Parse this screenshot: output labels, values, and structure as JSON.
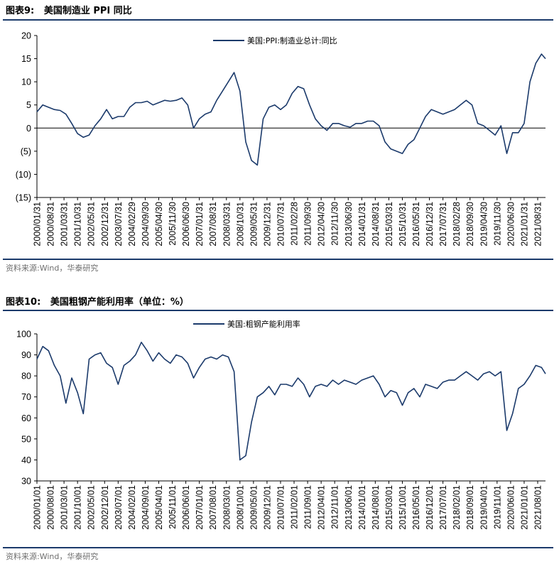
{
  "fig1": {
    "title": "图表9:   美国制造业 PPI 同比",
    "source": "资料来源:Wind，华泰研究"
  },
  "fig2": {
    "title": "图表10:   美国粗钢产能利用率（单位：%）",
    "source": "资料来源:Wind，华泰研究"
  },
  "colors": {
    "line": "#1b3a6b",
    "rule": "#1b3a6b"
  },
  "chart_data": [
    {
      "type": "line",
      "legend": "美国:PPI:制造业总计:同比",
      "legend_position": "top-center",
      "ylim": [
        -15,
        20
      ],
      "yticks": [
        20,
        15,
        10,
        5,
        0,
        -5,
        -10,
        -15
      ],
      "ytick_labels": [
        "20",
        "15",
        "10",
        "5",
        "0",
        "(5)",
        "(10)",
        "(15)"
      ],
      "xlim": [
        2000.0,
        2021.92
      ],
      "xtick_labels": [
        "2000/01/31",
        "2000/08/31",
        "2001/03/31",
        "2001/10/31",
        "2002/05/31",
        "2002/12/31",
        "2003/07/31",
        "2004/02/29",
        "2004/09/30",
        "2005/04/30",
        "2005/11/30",
        "2006/06/30",
        "2007/01/31",
        "2007/08/31",
        "2008/03/31",
        "2008/10/31",
        "2009/05/31",
        "2009/12/31",
        "2010/07/31",
        "2011/02/28",
        "2011/09/30",
        "2012/04/30",
        "2012/11/30",
        "2013/06/30",
        "2014/01/31",
        "2014/08/31",
        "2015/03/31",
        "2015/10/31",
        "2016/05/31",
        "2016/12/31",
        "2017/07/31",
        "2018/02/28",
        "2018/09/30",
        "2019/04/30",
        "2019/11/30",
        "2020/06/30",
        "2021/01/31",
        "2021/08/31"
      ],
      "xtick_values": [
        2000.0,
        2000.583,
        2001.167,
        2001.75,
        2002.333,
        2002.917,
        2003.5,
        2004.083,
        2004.667,
        2005.25,
        2005.833,
        2006.417,
        2007.0,
        2007.583,
        2008.167,
        2008.75,
        2009.333,
        2009.917,
        2010.5,
        2011.083,
        2011.667,
        2012.25,
        2012.833,
        2013.417,
        2014.0,
        2014.583,
        2015.167,
        2015.75,
        2016.333,
        2016.917,
        2017.5,
        2018.083,
        2018.667,
        2019.25,
        2019.833,
        2020.417,
        2021.0,
        2021.583
      ],
      "x": [
        2000.0,
        2000.25,
        2000.5,
        2000.75,
        2001.0,
        2001.25,
        2001.5,
        2001.75,
        2002.0,
        2002.25,
        2002.5,
        2002.75,
        2003.0,
        2003.25,
        2003.5,
        2003.75,
        2004.0,
        2004.25,
        2004.5,
        2004.75,
        2005.0,
        2005.25,
        2005.5,
        2005.75,
        2006.0,
        2006.25,
        2006.5,
        2006.75,
        2007.0,
        2007.25,
        2007.5,
        2007.75,
        2008.0,
        2008.25,
        2008.5,
        2008.75,
        2009.0,
        2009.25,
        2009.5,
        2009.75,
        2010.0,
        2010.25,
        2010.5,
        2010.75,
        2011.0,
        2011.25,
        2011.5,
        2011.75,
        2012.0,
        2012.25,
        2012.5,
        2012.75,
        2013.0,
        2013.25,
        2013.5,
        2013.75,
        2014.0,
        2014.25,
        2014.5,
        2014.75,
        2015.0,
        2015.25,
        2015.5,
        2015.75,
        2016.0,
        2016.25,
        2016.5,
        2016.75,
        2017.0,
        2017.25,
        2017.5,
        2017.75,
        2018.0,
        2018.25,
        2018.5,
        2018.75,
        2019.0,
        2019.25,
        2019.5,
        2019.75,
        2020.0,
        2020.25,
        2020.5,
        2020.75,
        2021.0,
        2021.25,
        2021.5,
        2021.75,
        2021.92
      ],
      "y": [
        3.5,
        5.0,
        4.5,
        4.0,
        3.8,
        3.0,
        1.0,
        -1.2,
        -2.0,
        -1.5,
        0.5,
        2.0,
        4.0,
        2.0,
        2.5,
        2.5,
        4.5,
        5.5,
        5.5,
        5.8,
        5.0,
        5.5,
        6.0,
        5.8,
        6.0,
        6.5,
        5.0,
        0.0,
        2.0,
        3.0,
        3.5,
        6.0,
        8.0,
        10.0,
        12.0,
        8.0,
        -3.0,
        -7.0,
        -8.0,
        2.0,
        4.5,
        5.0,
        4.0,
        5.0,
        7.5,
        9.0,
        8.5,
        5.0,
        2.0,
        0.5,
        -0.5,
        1.0,
        1.0,
        0.5,
        0.2,
        1.0,
        1.0,
        1.5,
        1.5,
        0.5,
        -3.0,
        -4.5,
        -5.0,
        -5.5,
        -3.5,
        -2.5,
        0.0,
        2.5,
        4.0,
        3.5,
        3.0,
        3.5,
        4.0,
        5.0,
        6.0,
        5.0,
        1.0,
        0.5,
        -0.5,
        -1.5,
        0.5,
        -5.5,
        -1.0,
        -1.0,
        1.0,
        10.0,
        14.0,
        16.0,
        15.0
      ]
    },
    {
      "type": "line",
      "legend": "美国:粗钢产能利用率",
      "legend_position": "top-center",
      "ylim": [
        30,
        100
      ],
      "yticks": [
        100,
        90,
        80,
        70,
        60,
        50,
        40,
        30
      ],
      "ytick_labels": [
        "100",
        "90",
        "80",
        "70",
        "60",
        "50",
        "40",
        "30"
      ],
      "xlim": [
        2000.0,
        2021.92
      ],
      "xtick_labels": [
        "2000/01/01",
        "2000/08/01",
        "2001/03/01",
        "2001/10/01",
        "2002/05/01",
        "2002/12/01",
        "2003/07/01",
        "2004/02/01",
        "2004/09/01",
        "2005/04/01",
        "2005/11/01",
        "2006/06/01",
        "2007/01/01",
        "2007/08/01",
        "2008/03/01",
        "2008/10/01",
        "2009/05/01",
        "2009/12/01",
        "2010/07/01",
        "2011/02/01",
        "2011/09/01",
        "2012/04/01",
        "2012/11/01",
        "2013/06/01",
        "2014/01/01",
        "2014/08/01",
        "2015/03/01",
        "2015/10/01",
        "2016/05/01",
        "2016/12/01",
        "2017/07/01",
        "2018/02/01",
        "2018/09/01",
        "2019/04/01",
        "2019/11/01",
        "2020/06/01",
        "2021/01/01",
        "2021/08/01"
      ],
      "xtick_values": [
        2000.0,
        2000.583,
        2001.167,
        2001.75,
        2002.333,
        2002.917,
        2003.5,
        2004.083,
        2004.667,
        2005.25,
        2005.833,
        2006.417,
        2007.0,
        2007.583,
        2008.167,
        2008.75,
        2009.333,
        2009.917,
        2010.5,
        2011.083,
        2011.667,
        2012.25,
        2012.833,
        2013.417,
        2014.0,
        2014.583,
        2015.167,
        2015.75,
        2016.333,
        2016.917,
        2017.5,
        2018.083,
        2018.667,
        2019.25,
        2019.833,
        2020.417,
        2021.0,
        2021.583
      ],
      "x": [
        2000.0,
        2000.25,
        2000.5,
        2000.75,
        2001.0,
        2001.25,
        2001.5,
        2001.75,
        2002.0,
        2002.25,
        2002.5,
        2002.75,
        2003.0,
        2003.25,
        2003.5,
        2003.75,
        2004.0,
        2004.25,
        2004.5,
        2004.75,
        2005.0,
        2005.25,
        2005.5,
        2005.75,
        2006.0,
        2006.25,
        2006.5,
        2006.75,
        2007.0,
        2007.25,
        2007.5,
        2007.75,
        2008.0,
        2008.25,
        2008.5,
        2008.75,
        2009.0,
        2009.25,
        2009.5,
        2009.75,
        2010.0,
        2010.25,
        2010.5,
        2010.75,
        2011.0,
        2011.25,
        2011.5,
        2011.75,
        2012.0,
        2012.25,
        2012.5,
        2012.75,
        2013.0,
        2013.25,
        2013.5,
        2013.75,
        2014.0,
        2014.25,
        2014.5,
        2014.75,
        2015.0,
        2015.25,
        2015.5,
        2015.75,
        2016.0,
        2016.25,
        2016.5,
        2016.75,
        2017.0,
        2017.25,
        2017.5,
        2017.75,
        2018.0,
        2018.25,
        2018.5,
        2018.75,
        2019.0,
        2019.25,
        2019.5,
        2019.75,
        2020.0,
        2020.25,
        2020.5,
        2020.75,
        2021.0,
        2021.25,
        2021.5,
        2021.75,
        2021.92
      ],
      "y": [
        88,
        94,
        92,
        85,
        80,
        67,
        79,
        72,
        62,
        88,
        90,
        91,
        86,
        84,
        76,
        85,
        87,
        90,
        96,
        92,
        87,
        91,
        88,
        86,
        90,
        89,
        86,
        79,
        84,
        88,
        89,
        88,
        90,
        89,
        82,
        40,
        42,
        58,
        70,
        72,
        75,
        71,
        76,
        76,
        75,
        79,
        76,
        70,
        75,
        76,
        75,
        78,
        76,
        78,
        77,
        76,
        78,
        79,
        80,
        76,
        70,
        73,
        72,
        66,
        72,
        74,
        70,
        76,
        75,
        74,
        77,
        78,
        78,
        80,
        82,
        80,
        78,
        81,
        82,
        80,
        82,
        54,
        62,
        74,
        76,
        80,
        85,
        84,
        81
      ]
    }
  ]
}
